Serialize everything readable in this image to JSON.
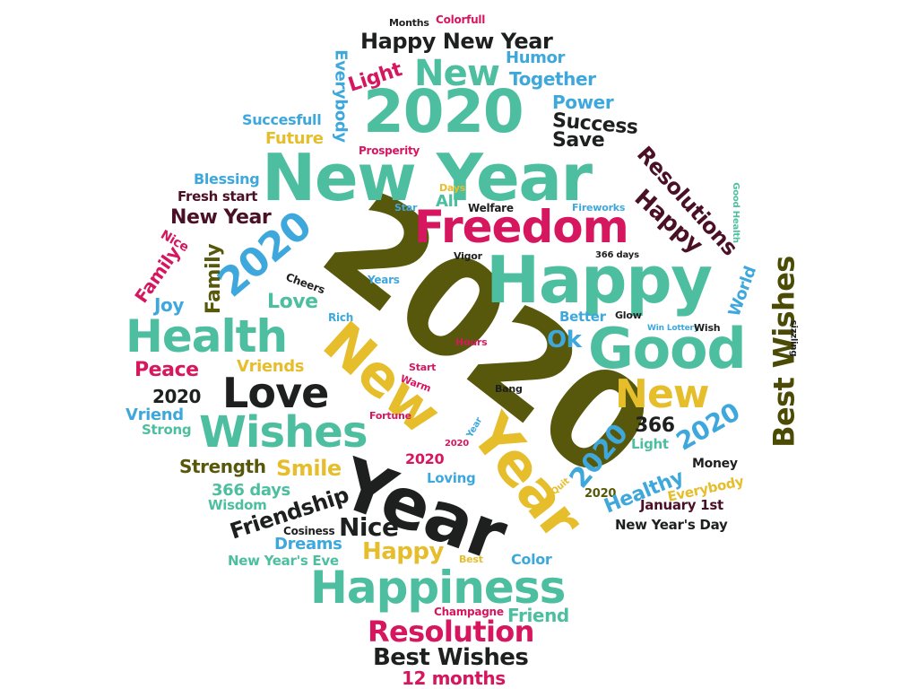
{
  "colors": {
    "teal": "#4dbfa0",
    "magenta": "#d6175f",
    "black": "#1e1f1f",
    "olive": "#58580c",
    "yellow": "#e6bd2b",
    "blue": "#3ea8dd",
    "maroon": "#4a1026"
  },
  "words": {
    "big_2020": "2020",
    "new_year_top": "New Year",
    "happy_big": "Happy",
    "freedom": "Freedom",
    "top_2020": "2020",
    "new_big": "New",
    "happy_new_year": "Happy New Year",
    "good": "Good",
    "health": "Health",
    "love": "Love",
    "wishes": "Wishes",
    "year_black": "Year",
    "new_yellow": "New",
    "year_yellow": "Year",
    "happiness": "Happiness",
    "resolution": "Resolution",
    "best_wishes_bottom": "Best Wishes",
    "twelve_months": "12 months",
    "best_wishes_side": "Best Wishes",
    "new_right": "New",
    "resolutions": "Resolutions",
    "happy_maroon": "Happy",
    "success": "Success",
    "save": "Save",
    "power": "Power",
    "together": "Together",
    "humor": "Humor",
    "light_top": "Light",
    "everybody_left": "Everybody",
    "succesfull": "Succesfull",
    "future": "Future",
    "prosperity": "Prosperity",
    "blessing": "Blessing",
    "fresh_start": "Fresh start",
    "new_year_small": "New Year",
    "twenty20_blue_left": "2020",
    "nice_small": "Nice",
    "family_mag": "Family",
    "family_olive": "Family",
    "joy": "Joy",
    "love_small": "Love",
    "cheers": "Cheers",
    "years": "Years",
    "rich": "Rich",
    "peace": "Peace",
    "vriends": "Vriends",
    "twenty20_black": "2020",
    "vriend": "Vriend",
    "strong": "Strong",
    "strength": "Strength",
    "smile": "Smile",
    "days366": "366 days",
    "wisdom": "Wisdom",
    "friendship": "Friendship",
    "nice_black": "Nice",
    "cosiness": "Cosiness",
    "dreams": "Dreams",
    "happy_yellow_small": "Happy",
    "new_years_eve": "New Year's Eve",
    "best_tiny": "Best",
    "color": "Color",
    "champagne": "Champagne",
    "friend": "Friend",
    "months": "Months",
    "colorfull": "Colorfull",
    "days_tiny": "Days",
    "all": "All",
    "star": "Star",
    "welfare": "Welfare",
    "fireworks": "Fireworks",
    "vigor": "Vigor",
    "days366_small": "366 days",
    "good_health": "Good Health",
    "world": "World",
    "better": "Better",
    "glow": "Glow",
    "win_lottery": "Win Lottery",
    "wish": "Wish",
    "sizzling": "sizzling",
    "ok": "Ok",
    "hours": "Hours",
    "start": "Start",
    "warm": "Warm",
    "bang": "Bang",
    "fortune": "Fortune",
    "year_tiny": "Year",
    "twenty20_tiny": "2020",
    "twenty20_magenta": "2020",
    "loving": "Loving",
    "quit": "Quit",
    "twenty20_blue_diag": "2020",
    "twenty20_olive_small": "2020",
    "num366": "366",
    "light_right": "Light",
    "healthy": "Healthy",
    "twenty20_blue_right": "2020",
    "money": "Money",
    "everybody_right": "Everybody",
    "january_1st": "January 1st",
    "new_years_day": "New Year's Day"
  }
}
